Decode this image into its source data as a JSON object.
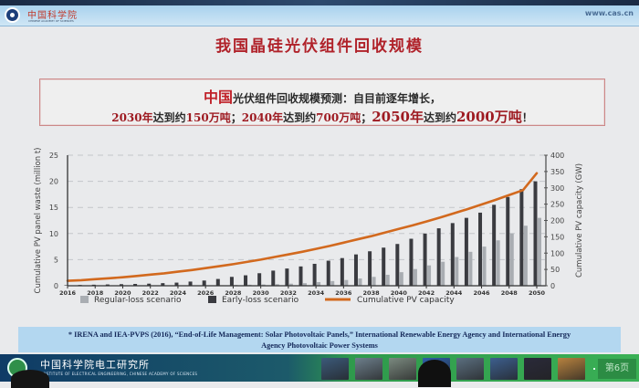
{
  "header": {
    "logo_text": "中国科学院",
    "logo_subtext": "CHINESE ACADEMY OF SCIENCES",
    "url": "www.cas.cn"
  },
  "slide": {
    "title": "我国晶硅光伏组件回收规模",
    "summary": {
      "line1_highlight": "中国",
      "line1_rest": "光伏组件回收规模预测：自目前逐年增长，",
      "line2_parts": [
        {
          "text": "2030年",
          "red": true
        },
        {
          "text": "达到约",
          "red": false
        },
        {
          "text": "150万吨",
          "red": true
        },
        {
          "text": "；",
          "red": false
        },
        {
          "text": "2040年",
          "red": true
        },
        {
          "text": "达到约",
          "red": false
        },
        {
          "text": "700万吨",
          "red": true
        },
        {
          "text": "；",
          "red": false
        },
        {
          "text": "2050年",
          "red": true
        },
        {
          "text": "达到约",
          "red": false
        },
        {
          "text": "2000万吨",
          "red": true
        },
        {
          "text": "！",
          "red": false
        }
      ]
    },
    "footnote_line1": "* IRENA and IEA-PVPS (2016), “End-of-Life Management: Solar Photovoltaic Panels,” International Renewable Energy Agency and International Energy",
    "footnote_line2": "Agency Photovoltaic Power Systems"
  },
  "footer": {
    "institute_cn": "中国科学院电工研究所",
    "institute_en": "INSTITUTE OF ELECTRICAL ENGINEERING, CHINESE ACADEMY OF SCIENCES",
    "page_label": "第6页",
    "thumbnail_colors": [
      "#3c5a7a",
      "#6d7f8c",
      "#7b8a80",
      "#2e5fa8",
      "#5b6f80",
      "#3d5f8e",
      "#2a2a3a",
      "#b7823f"
    ]
  },
  "colors": {
    "title_red": "#b0222a",
    "regular_loss": "#a9adb2",
    "early_loss": "#3a3b40",
    "capacity_line": "#d2691e",
    "grid": "#c4c6ca"
  },
  "chart_data": {
    "type": "bar",
    "title": "",
    "xlabel": "",
    "ylabel": "Cumulative PV panel waste (million t)",
    "y2label": "Cumulative PV capacity (GW)",
    "ylim": [
      0,
      25
    ],
    "y2lim": [
      0,
      400
    ],
    "yticks": [
      0,
      5,
      10,
      15,
      20,
      25
    ],
    "y2ticks": [
      0,
      50,
      100,
      150,
      200,
      250,
      300,
      350,
      400
    ],
    "xtick_labels": [
      "2016",
      "2018",
      "2020",
      "2022",
      "2024",
      "2026",
      "2028",
      "2030",
      "2032",
      "2034",
      "2036",
      "2038",
      "2040",
      "2042",
      "2044",
      "2046",
      "2048",
      "2050"
    ],
    "grid": "horizontal dashed",
    "legend_position": "bottom",
    "categories": [
      2016,
      2017,
      2018,
      2019,
      2020,
      2021,
      2022,
      2023,
      2024,
      2025,
      2026,
      2027,
      2028,
      2029,
      2030,
      2031,
      2032,
      2033,
      2034,
      2035,
      2036,
      2037,
      2038,
      2039,
      2040,
      2041,
      2042,
      2043,
      2044,
      2045,
      2046,
      2047,
      2048,
      2049,
      2050
    ],
    "series": [
      {
        "name": "Regular-loss scenario",
        "type": "bar",
        "axis": "left",
        "values": [
          0,
          0,
          0,
          0,
          0,
          0,
          0,
          0,
          0,
          0,
          0.05,
          0.1,
          0.15,
          0.2,
          0.25,
          0.3,
          0.4,
          0.5,
          0.7,
          0.9,
          1.1,
          1.4,
          1.7,
          2.1,
          2.6,
          3.2,
          3.9,
          4.6,
          5.5,
          6.5,
          7.5,
          8.7,
          10.0,
          11.5,
          13.0
        ]
      },
      {
        "name": "Early-loss scenario",
        "type": "bar",
        "axis": "left",
        "values": [
          0.1,
          0.15,
          0.2,
          0.25,
          0.3,
          0.35,
          0.4,
          0.5,
          0.6,
          0.8,
          1.0,
          1.3,
          1.7,
          2.0,
          2.4,
          2.9,
          3.3,
          3.7,
          4.2,
          4.8,
          5.3,
          6.0,
          6.6,
          7.3,
          8.0,
          9.0,
          10.0,
          11.0,
          12.0,
          13.0,
          14.0,
          15.5,
          17.0,
          18.5,
          20.0
        ]
      },
      {
        "name": "Cumulative PV capacity",
        "type": "line",
        "axis": "right",
        "values": [
          15,
          17,
          20,
          23,
          26,
          30,
          34,
          38,
          43,
          48,
          54,
          60,
          66,
          73,
          80,
          88,
          96,
          104,
          113,
          122,
          132,
          142,
          152,
          163,
          174,
          185,
          197,
          209,
          222,
          235,
          249,
          263,
          278,
          293,
          345
        ]
      }
    ]
  }
}
